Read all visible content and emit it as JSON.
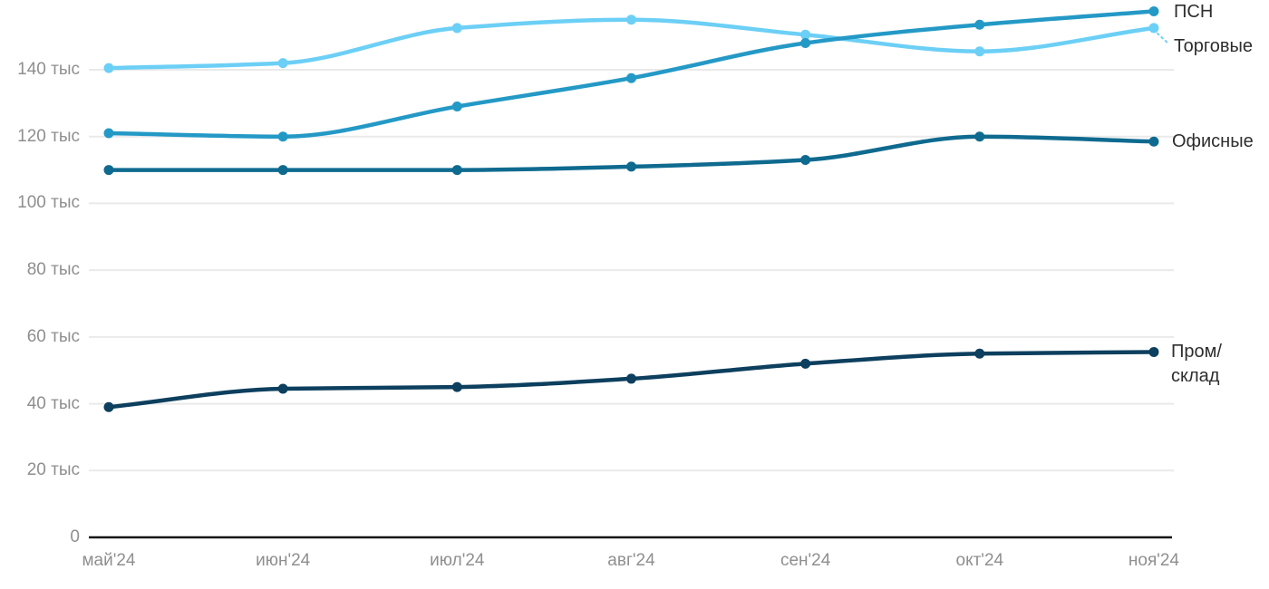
{
  "chart_data": {
    "type": "line",
    "title": "",
    "x": [
      "май'24",
      "июн'24",
      "июл'24",
      "авг'24",
      "сен'24",
      "окт'24",
      "ноя'24"
    ],
    "y_axis": {
      "min": 0,
      "max": 160,
      "tick_step": 20,
      "tick_labels": [
        "0",
        "20 тыс",
        "40 тыс",
        "60 тыс",
        "80 тыс",
        "100 тыс",
        "120 тыс",
        "140 тыс"
      ]
    },
    "grid": true,
    "legend_position": "right-of-line-end",
    "series": [
      {
        "name": "ПСН",
        "color": "#2499c6",
        "values": [
          121,
          120,
          129,
          137.5,
          148,
          153.5,
          157.5
        ]
      },
      {
        "name": "Торговые",
        "color": "#6ccff6",
        "values": [
          140.5,
          142,
          152.5,
          155,
          150.5,
          145.5,
          152.5
        ],
        "label_connector": "dashed"
      },
      {
        "name": "Офисные",
        "color": "#0f6a8f",
        "values": [
          110,
          110,
          110,
          111,
          113,
          120,
          118.5
        ]
      },
      {
        "name": "Пром/склад",
        "color": "#0d3f5e",
        "values": [
          39,
          44.5,
          45,
          47.5,
          52,
          55,
          55.5
        ],
        "label_lines": [
          "Пром/",
          "склад"
        ]
      }
    ]
  }
}
